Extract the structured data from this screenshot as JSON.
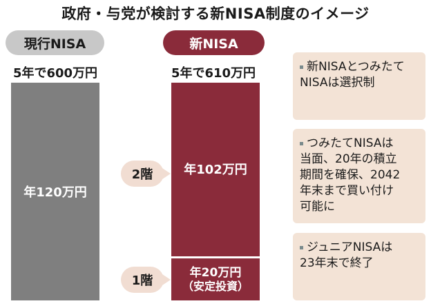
{
  "title": "政府・与党が検討する新NISA制度のイメージ",
  "current": {
    "label": "現行NISA",
    "total": "5年で600万円",
    "annual": "年120万円"
  },
  "new": {
    "label": "新NISA",
    "total": "5年で610万円",
    "tier2": {
      "floor": "2階",
      "amount": "年102万円"
    },
    "tier1": {
      "floor": "1階",
      "amount": "年20万円",
      "note": "（安定投資）"
    }
  },
  "notes": [
    {
      "lines": [
        "新NISAとつみたて",
        "NISAは選択制"
      ]
    },
    {
      "lines": [
        "つみたてNISAは",
        "当面、20年の積立",
        "期間を確保、2042",
        "年末まで買い付け",
        "可能に"
      ]
    },
    {
      "lines": [
        "ジュニアNISAは",
        "23年末で終了"
      ]
    }
  ],
  "colors": {
    "current_bar": "#7f7f7f",
    "new_bar": "#8a2b3a",
    "note_bg": "#f3e3d6",
    "floor_label_bg": "#f1ddd2"
  }
}
